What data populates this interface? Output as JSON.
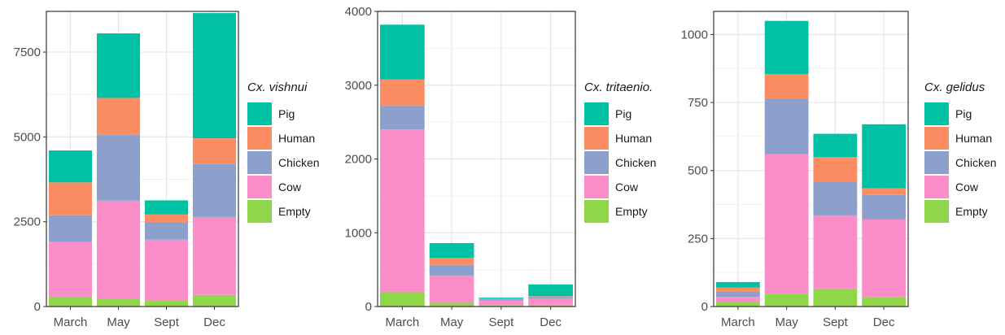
{
  "chart_data": [
    {
      "type": "bar",
      "stacked": true,
      "categories": [
        "March",
        "May",
        "Sept",
        "Dec"
      ],
      "legend_title": "Cx. vishnui",
      "ylim": [
        0,
        8700
      ],
      "yticks": [
        0,
        2500,
        5000,
        7500
      ],
      "grid": true,
      "legend_position": "right",
      "series": [
        {
          "name": "Empty",
          "color": "#8fd64b",
          "values": [
            290,
            230,
            190,
            340
          ]
        },
        {
          "name": "Cow",
          "color": "#fb8ec8",
          "values": [
            1610,
            2890,
            1780,
            2300
          ]
        },
        {
          "name": "Chicken",
          "color": "#8da0cb",
          "values": [
            790,
            1940,
            510,
            1560
          ]
        },
        {
          "name": "Human",
          "color": "#fc8d62",
          "values": [
            970,
            1090,
            240,
            760
          ]
        },
        {
          "name": "Pig",
          "color": "#00c1a3",
          "values": [
            940,
            1900,
            410,
            3690
          ]
        }
      ]
    },
    {
      "type": "bar",
      "stacked": true,
      "categories": [
        "March",
        "May",
        "Sept",
        "Dec"
      ],
      "legend_title": "Cx. tritaenio.",
      "ylim": [
        0,
        4000
      ],
      "yticks": [
        0,
        1000,
        2000,
        3000,
        4000
      ],
      "grid": true,
      "legend_position": "right",
      "series": [
        {
          "name": "Empty",
          "color": "#8fd64b",
          "values": [
            200,
            50,
            20,
            20
          ]
        },
        {
          "name": "Cow",
          "color": "#fb8ec8",
          "values": [
            2200,
            370,
            60,
            90
          ]
        },
        {
          "name": "Chicken",
          "color": "#8da0cb",
          "values": [
            320,
            140,
            20,
            20
          ]
        },
        {
          "name": "Human",
          "color": "#fc8d62",
          "values": [
            360,
            100,
            10,
            10
          ]
        },
        {
          "name": "Pig",
          "color": "#00c1a3",
          "values": [
            740,
            200,
            10,
            160
          ]
        }
      ]
    },
    {
      "type": "bar",
      "stacked": true,
      "categories": [
        "March",
        "May",
        "Sept",
        "Dec"
      ],
      "legend_title": "Cx. gelidus",
      "ylim": [
        0,
        1085
      ],
      "yticks": [
        0,
        250,
        500,
        750,
        1000
      ],
      "grid": true,
      "legend_position": "right",
      "series": [
        {
          "name": "Empty",
          "color": "#8fd64b",
          "values": [
            15,
            45,
            65,
            35
          ]
        },
        {
          "name": "Cow",
          "color": "#fb8ec8",
          "values": [
            20,
            515,
            270,
            285
          ]
        },
        {
          "name": "Chicken",
          "color": "#8da0cb",
          "values": [
            20,
            205,
            125,
            90
          ]
        },
        {
          "name": "Human",
          "color": "#fc8d62",
          "values": [
            15,
            90,
            90,
            25
          ]
        },
        {
          "name": "Pig",
          "color": "#00c1a3",
          "values": [
            20,
            195,
            85,
            235
          ]
        }
      ]
    }
  ]
}
